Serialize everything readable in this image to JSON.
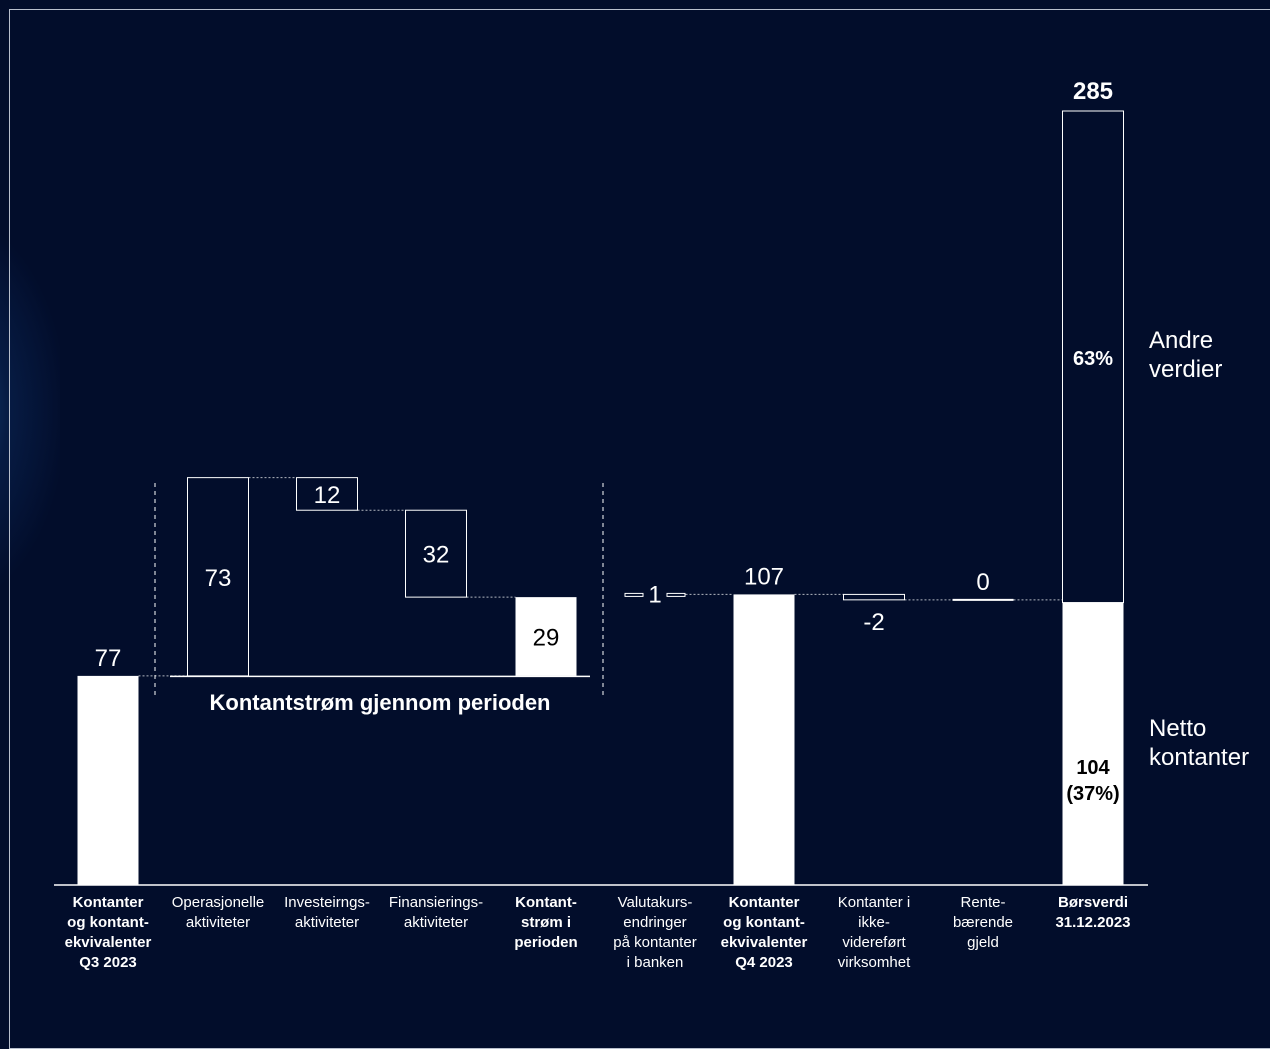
{
  "chart_data": {
    "type": "waterfall",
    "steps": [
      {
        "label": "Kontanter\nog kontant-\nekvivalenter\nQ3 2023",
        "kind": "total",
        "value": 77,
        "display": "77",
        "bold": true
      },
      {
        "label": "Operasjonelle\naktiviteter",
        "kind": "delta",
        "value": 73,
        "display": "73",
        "bold": false
      },
      {
        "label": "Investeirngs-\naktiviteter",
        "kind": "delta",
        "value": -12,
        "display": "12",
        "bold": false
      },
      {
        "label": "Finansierings-\naktiviteter",
        "kind": "delta",
        "value": -32,
        "display": "32",
        "bold": false
      },
      {
        "label": "Kontant-\nstrøm i\nperioden",
        "kind": "subtotal",
        "value": 29,
        "display": "29",
        "bold": true
      },
      {
        "label": "Valutakurs-\nendringer\npå kontanter\ni banken",
        "kind": "delta",
        "value": 1,
        "display": "1",
        "bold": false
      },
      {
        "label": "Kontanter\nog kontant-\nekvivalenter\nQ4 2023",
        "kind": "total",
        "value": 107,
        "display": "107",
        "bold": true
      },
      {
        "label": "Kontanter i\nikke-\nvidereført\nvirksomhet",
        "kind": "delta",
        "value": -2,
        "display": "-2",
        "bold": false
      },
      {
        "label": "Rente-\nbærende\ngjeld",
        "kind": "delta",
        "value": 0,
        "display": "0",
        "bold": false
      },
      {
        "label": "Børsverdi\n31.12.2023",
        "kind": "stacked",
        "value": 285,
        "display": "285",
        "bold": true,
        "segments": [
          {
            "name": "Netto kontanter",
            "value": 104,
            "label": "104\n(37%)"
          },
          {
            "name": "Andre verdier",
            "value": 181,
            "label": "63%"
          }
        ]
      }
    ],
    "bracket_label": "Kontantstrøm gjennom perioden",
    "series_labels": {
      "top": "Andre\nverdier",
      "bottom": "Netto\nkontanter"
    },
    "ylim": [
      0,
      285
    ]
  }
}
